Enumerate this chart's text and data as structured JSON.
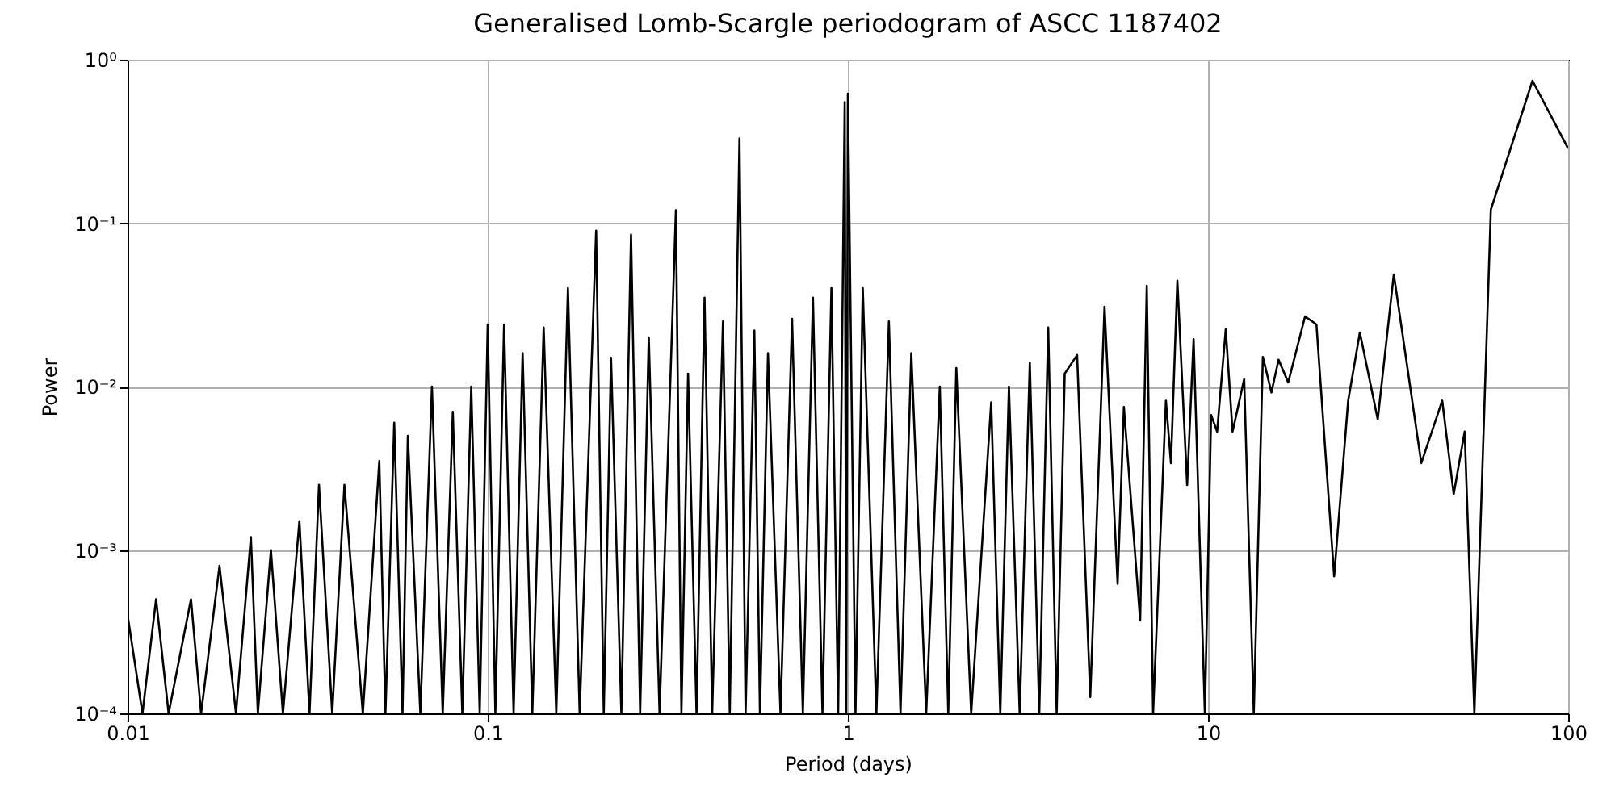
{
  "chart_data": {
    "type": "line",
    "title": "Generalised Lomb-Scargle periodogram of ASCC 1187402",
    "xlabel": "Period (days)",
    "ylabel": "Power",
    "log": "xy",
    "grid": true,
    "marker": "none",
    "line_style": "solid",
    "xlim": [
      0.01,
      100
    ],
    "xticks": [
      0.01,
      0.1,
      1,
      10,
      100
    ],
    "ylim": [
      0.0001,
      1
    ],
    "yticks": [
      {
        "value": 0.0001,
        "label": "10⁻⁴"
      },
      {
        "value": 0.001,
        "label": "10⁻³"
      },
      {
        "value": 0.01,
        "label": "10⁻²"
      },
      {
        "value": 0.1,
        "label": "10⁻¹"
      },
      {
        "value": 1,
        "label": "10⁰"
      }
    ],
    "series": [
      {
        "color": "#000000",
        "x": [
          0.01,
          0.011,
          0.012,
          0.013,
          0.015,
          0.016,
          0.018,
          0.02,
          0.022,
          0.023,
          0.025,
          0.027,
          0.03,
          0.032,
          0.034,
          0.037,
          0.04,
          0.045,
          0.05,
          0.052,
          0.055,
          0.058,
          0.06,
          0.065,
          0.07,
          0.075,
          0.08,
          0.085,
          0.09,
          0.095,
          0.1,
          0.105,
          0.111,
          0.118,
          0.125,
          0.133,
          0.143,
          0.155,
          0.167,
          0.18,
          0.2,
          0.21,
          0.22,
          0.235,
          0.25,
          0.265,
          0.28,
          0.3,
          0.333,
          0.345,
          0.36,
          0.38,
          0.4,
          0.42,
          0.45,
          0.47,
          0.5,
          0.52,
          0.55,
          0.57,
          0.6,
          0.65,
          0.7,
          0.75,
          0.8,
          0.85,
          0.9,
          0.94,
          0.98,
          0.99,
          1.0,
          1.05,
          1.1,
          1.2,
          1.3,
          1.4,
          1.5,
          1.65,
          1.8,
          1.9,
          2.0,
          2.2,
          2.5,
          2.65,
          2.8,
          3.0,
          3.2,
          3.4,
          3.6,
          3.8,
          4.0,
          4.33,
          4.71,
          5.16,
          5.61,
          5.84,
          6.48,
          6.76,
          7.04,
          7.64,
          7.89,
          8.22,
          8.75,
          9.12,
          9.8,
          10.2,
          10.6,
          11.2,
          11.7,
          12.6,
          13.4,
          14.2,
          15.0,
          15.7,
          16.7,
          18.6,
          20.0,
          22.4,
          24.5,
          26.4,
          29.6,
          32.8,
          39.1,
          44.7,
          48.1,
          51.6,
          54.9,
          61.0,
          79.6,
          100
        ],
        "values": [
          0.0004,
          0.0001,
          0.0005,
          0.0001,
          0.0005,
          0.0001,
          0.0008,
          0.0001,
          0.0012,
          0.0001,
          0.001,
          0.0001,
          0.0015,
          0.0001,
          0.0025,
          0.0001,
          0.0025,
          0.0001,
          0.0035,
          0.0001,
          0.006,
          0.0001,
          0.005,
          0.0001,
          0.01,
          0.0001,
          0.007,
          0.0001,
          0.01,
          0.0001,
          0.024,
          0.0001,
          0.024,
          0.0001,
          0.016,
          0.0001,
          0.023,
          0.0001,
          0.04,
          0.0001,
          0.09,
          0.0001,
          0.015,
          0.0001,
          0.085,
          0.0001,
          0.02,
          0.0001,
          0.12,
          0.0001,
          0.012,
          0.0001,
          0.035,
          0.0001,
          0.025,
          0.0001,
          0.33,
          0.0001,
          0.022,
          0.0001,
          0.016,
          0.0001,
          0.026,
          0.0001,
          0.035,
          0.0001,
          0.04,
          0.0001,
          0.55,
          0.0001,
          0.62,
          0.0001,
          0.04,
          0.0001,
          0.025,
          0.0001,
          0.016,
          0.0001,
          0.01,
          0.0001,
          0.013,
          0.0001,
          0.008,
          0.0001,
          0.01,
          0.0001,
          0.014,
          0.0001,
          0.023,
          0.0001,
          0.012,
          0.0156,
          0.000126,
          0.0308,
          0.00062,
          0.0075,
          0.00037,
          0.0414,
          0.0001,
          0.0082,
          0.0034,
          0.0444,
          0.0025,
          0.0195,
          0.0001,
          0.0067,
          0.0053,
          0.0224,
          0.0053,
          0.0111,
          0.0001,
          0.0152,
          0.0092,
          0.0146,
          0.0106,
          0.0269,
          0.024,
          0.00069,
          0.0082,
          0.0214,
          0.0063,
          0.0486,
          0.0034,
          0.0082,
          0.0022,
          0.0053,
          0.0001,
          0.121,
          0.744,
          0.286
        ]
      }
    ]
  }
}
